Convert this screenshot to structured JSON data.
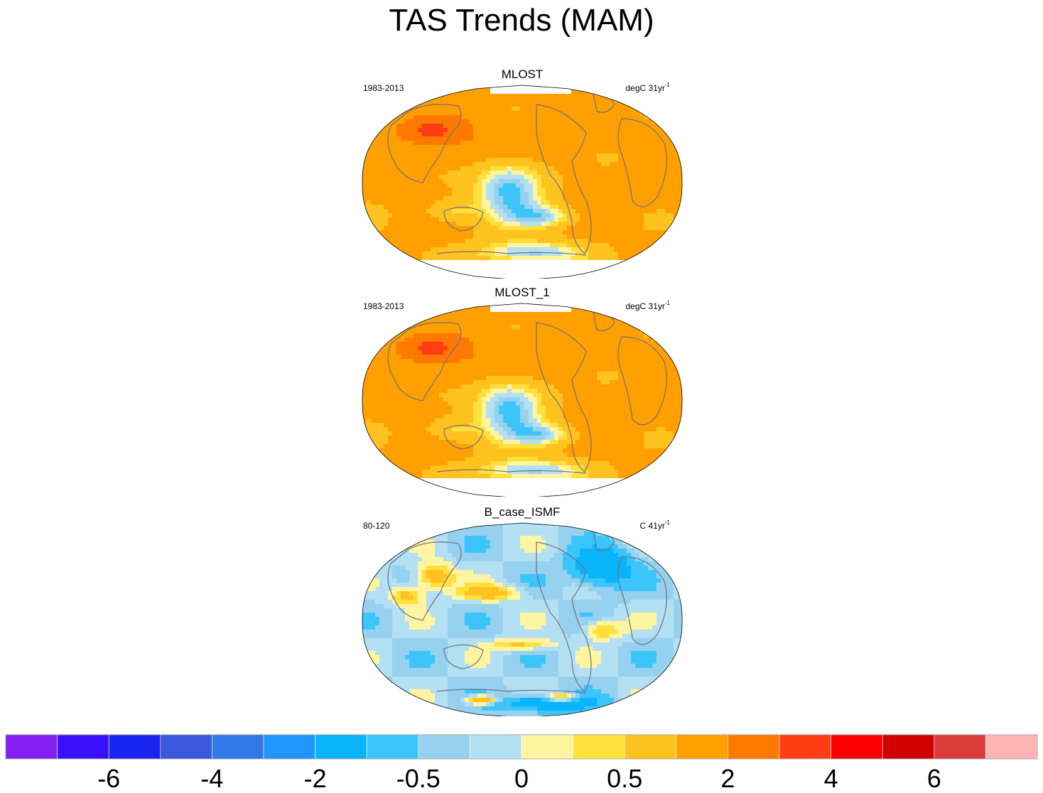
{
  "title": "TAS Trends (MAM)",
  "panels": [
    {
      "name": "MLOST",
      "left_label": "1983-2013",
      "right_unit": "degC 31yr",
      "right_exp": "-1",
      "field": "warm"
    },
    {
      "name": "MLOST_1",
      "left_label": "1983-2013",
      "right_unit": "degC 31yr",
      "right_exp": "-1",
      "field": "warm"
    },
    {
      "name": "B_case_ISMF",
      "left_label": "80-120",
      "right_unit": "C 41yr",
      "right_exp": "-1",
      "field": "cool"
    }
  ],
  "chart_data": {
    "type": "heatmap",
    "title": "TAS Trends (MAM)",
    "projection": "Robinson (Pacific-centered)",
    "colorbar": {
      "colors": [
        "#8320F0",
        "#3A10FA",
        "#1A24F0",
        "#3C58DC",
        "#2F78E6",
        "#1E96FA",
        "#0AB4FA",
        "#3CC5FA",
        "#96D2F0",
        "#B4E0F4",
        "#FFF5A0",
        "#FFE03C",
        "#FFC21E",
        "#FFA000",
        "#FF7800",
        "#FF3C14",
        "#FA0000",
        "#D20000",
        "#DC3C3C",
        "#FFB4B4"
      ],
      "tick_labels": [
        "-6",
        "-4",
        "-2",
        "-0.5",
        "0",
        "0.5",
        "2",
        "4",
        "6"
      ],
      "tick_boundaries": [
        2,
        4,
        6,
        8,
        10,
        12,
        14,
        16,
        18
      ]
    },
    "series": [
      {
        "name": "MLOST",
        "period": "1983-2013",
        "units": "degC 31yr-1",
        "pattern": "widespread warming, strongest over central Asia and the Arctic; cooling in the eastern tropical Pacific and Southern Ocean"
      },
      {
        "name": "MLOST_1",
        "period": "1983-2013",
        "units": "degC 31yr-1",
        "pattern": "nearly identical to MLOST"
      },
      {
        "name": "B_case_ISMF",
        "period": "80-120",
        "units": "C 41yr-1",
        "pattern": "predominantly weak cooling; strongest cooling over Greenland and Antarctica; scattered warm patches over Asia and the subtropical oceans"
      }
    ]
  }
}
